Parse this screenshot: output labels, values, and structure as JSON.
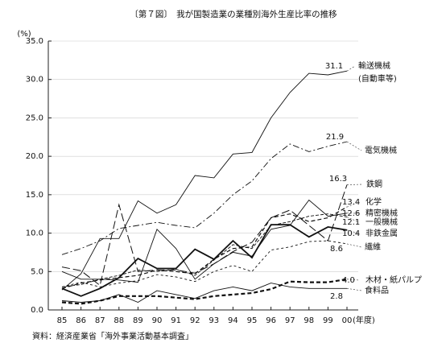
{
  "chart_data": {
    "type": "line",
    "title": "〔第７図〕　我が国製造業の業種別海外生産比率の推移",
    "y_unit": "(%)",
    "x_unit": "(年度)",
    "source": "資料：経済産業省「海外事業活動基本調査」",
    "categories": [
      "85",
      "86",
      "87",
      "88",
      "89",
      "90",
      "91",
      "92",
      "93",
      "94",
      "95",
      "96",
      "97",
      "98",
      "99",
      "00"
    ],
    "ylim": [
      0,
      35
    ],
    "yticks": [
      {
        "value": 0,
        "label": "0.0"
      },
      {
        "value": 5,
        "label": "5.0"
      },
      {
        "value": 10,
        "label": "10.0"
      },
      {
        "value": 15,
        "label": "15.0"
      },
      {
        "value": 20,
        "label": "20.0"
      },
      {
        "value": 25,
        "label": "25.0"
      },
      {
        "value": 30,
        "label": "30.0"
      },
      {
        "value": 35,
        "label": "35.0"
      }
    ],
    "grid": true,
    "series": [
      {
        "name": "輸送機械",
        "name_sub": "(自動車等)",
        "color": "#111",
        "values": [
          2.6,
          4.7,
          9.3,
          9.3,
          14.2,
          12.6,
          13.7,
          17.5,
          17.2,
          20.3,
          20.5,
          25.0,
          28.3,
          30.8,
          30.6,
          31.1
        ],
        "value_labels": [
          null,
          null,
          null,
          null,
          null,
          null,
          null,
          null,
          null,
          null,
          null,
          null,
          null,
          null,
          null,
          "31.1"
        ]
      },
      {
        "name": "電気機械",
        "color": "#111",
        "values": [
          7.2,
          8.0,
          9.0,
          10.6,
          11.0,
          11.4,
          11.0,
          10.7,
          12.6,
          15.0,
          16.8,
          19.7,
          21.6,
          20.6,
          21.3,
          21.9
        ],
        "value_labels": [
          null,
          null,
          null,
          null,
          null,
          null,
          null,
          null,
          null,
          null,
          null,
          null,
          null,
          null,
          null,
          "21.9"
        ]
      },
      {
        "name": "鉄鋼",
        "color": "#111",
        "values": [
          5.6,
          5.1,
          3.2,
          13.7,
          5.0,
          5.2,
          5.2,
          4.8,
          6.0,
          7.6,
          8.8,
          12.0,
          13.0,
          11.0,
          9.0,
          16.3
        ],
        "value_labels": [
          null,
          null,
          null,
          null,
          null,
          null,
          null,
          null,
          null,
          null,
          null,
          null,
          null,
          null,
          null,
          "16.3"
        ]
      },
      {
        "name": "化学",
        "color": "#111",
        "values": [
          2.8,
          3.5,
          3.9,
          4.2,
          4.5,
          5.2,
          5.0,
          4.7,
          6.6,
          8.0,
          8.2,
          12.0,
          12.5,
          11.5,
          12.0,
          13.4
        ],
        "value_labels": [
          null,
          null,
          null,
          null,
          null,
          null,
          null,
          null,
          null,
          null,
          null,
          null,
          null,
          null,
          null,
          "13.4"
        ]
      },
      {
        "name": "精密機械",
        "color": "#111",
        "values": [
          5.0,
          4.0,
          4.0,
          3.9,
          3.6,
          10.5,
          8.0,
          4.0,
          6.0,
          7.5,
          7.0,
          10.5,
          11.0,
          14.3,
          12.2,
          12.6
        ],
        "value_labels": [
          null,
          null,
          null,
          null,
          null,
          null,
          null,
          null,
          null,
          null,
          null,
          null,
          null,
          null,
          null,
          "12.6"
        ]
      },
      {
        "name": "一般機械",
        "color": "#111",
        "values": [
          3.0,
          3.3,
          4.0,
          4.5,
          5.2,
          5.0,
          5.3,
          4.5,
          6.5,
          8.5,
          8.0,
          11.0,
          11.5,
          12.2,
          12.5,
          12.1
        ],
        "value_labels": [
          null,
          null,
          null,
          null,
          null,
          null,
          null,
          null,
          null,
          null,
          null,
          null,
          null,
          null,
          null,
          "12.1"
        ]
      },
      {
        "name": "非鉄金属",
        "color": "#111",
        "values": [
          2.8,
          1.8,
          2.8,
          4.2,
          6.7,
          5.4,
          5.4,
          7.9,
          6.6,
          9.0,
          6.8,
          11.1,
          11.1,
          9.5,
          10.8,
          10.4
        ],
        "value_labels": [
          null,
          null,
          null,
          null,
          null,
          null,
          null,
          null,
          null,
          null,
          null,
          null,
          null,
          null,
          null,
          "10.4"
        ]
      },
      {
        "name": "繊維",
        "color": "#111",
        "values": [
          3.0,
          3.6,
          3.0,
          3.5,
          3.8,
          4.6,
          4.3,
          3.7,
          5.0,
          5.8,
          5.0,
          7.8,
          8.2,
          8.9,
          9.0,
          8.6
        ],
        "value_labels": [
          null,
          null,
          null,
          null,
          null,
          null,
          null,
          null,
          null,
          null,
          null,
          null,
          null,
          null,
          null,
          "8.6"
        ]
      },
      {
        "name": "木材・紙パルプ",
        "color": "#111",
        "values": [
          1.0,
          0.8,
          1.2,
          1.8,
          1.8,
          1.8,
          1.6,
          1.4,
          1.8,
          2.0,
          2.2,
          2.7,
          3.7,
          3.6,
          3.6,
          4.0
        ],
        "value_labels": [
          null,
          null,
          null,
          null,
          null,
          null,
          null,
          null,
          null,
          null,
          null,
          null,
          null,
          null,
          null,
          "4.0"
        ]
      },
      {
        "name": "食料品",
        "color": "#111",
        "values": [
          1.2,
          1.0,
          1.2,
          2.0,
          1.0,
          2.5,
          2.0,
          1.5,
          2.5,
          3.0,
          2.5,
          3.5,
          3.0,
          2.8,
          2.8,
          2.8
        ],
        "value_labels": [
          null,
          null,
          null,
          null,
          null,
          null,
          null,
          null,
          null,
          null,
          null,
          null,
          null,
          null,
          null,
          "2.8"
        ]
      }
    ]
  }
}
